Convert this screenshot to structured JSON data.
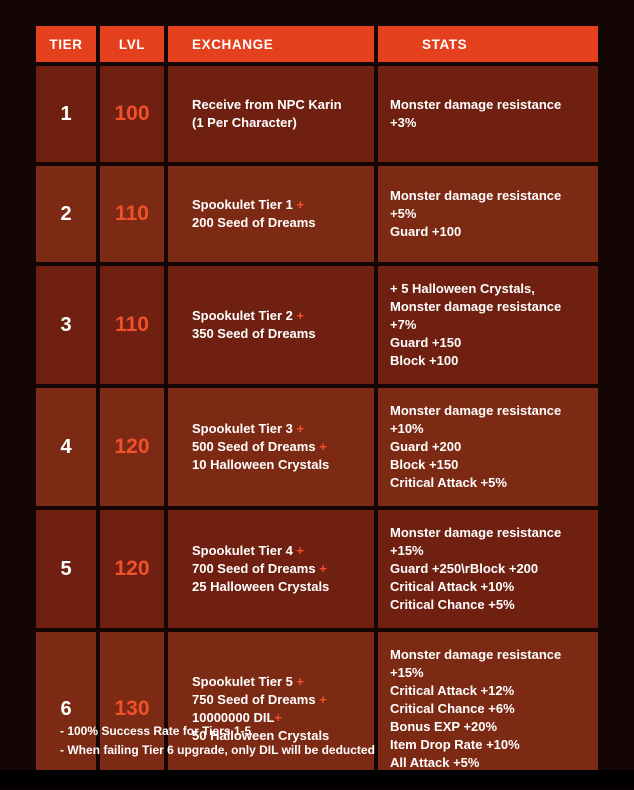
{
  "colors": {
    "header_bg": "#e5401d",
    "row_dark": "#6f2010",
    "row_light": "#7d2a14",
    "lvl_text": "#f2502a",
    "plus_accent": "#f2502a"
  },
  "table": {
    "headers": [
      "TIER",
      "LVL",
      "EXCHANGE",
      "STATS"
    ],
    "rows": [
      {
        "tier": "1",
        "lvl": "100",
        "exchange": [
          "Receive from NPC Karin",
          "(1 Per Character)"
        ],
        "stats": [
          "Monster damage resistance +3%"
        ]
      },
      {
        "tier": "2",
        "lvl": "110",
        "exchange": [
          "Spookulet Tier 1 +",
          "200 Seed of Dreams"
        ],
        "stats": [
          "Monster damage resistance +5%",
          "Guard +100"
        ]
      },
      {
        "tier": "3",
        "lvl": "110",
        "exchange": [
          "Spookulet Tier 2 +",
          "350 Seed of Dreams"
        ],
        "stats": [
          "+ 5 Halloween Crystals,",
          "Monster damage resistance +7%",
          "Guard +150",
          "Block +100"
        ]
      },
      {
        "tier": "4",
        "lvl": "120",
        "exchange": [
          "Spookulet Tier 3 +",
          "500 Seed of Dreams +",
          "10 Halloween Crystals"
        ],
        "stats": [
          "Monster damage resistance +10%",
          "Guard +200",
          "Block +150",
          "Critical Attack +5%"
        ]
      },
      {
        "tier": "5",
        "lvl": "120",
        "exchange": [
          "Spookulet Tier 4 +",
          "700 Seed of Dreams +",
          "25 Halloween Crystals"
        ],
        "stats": [
          "Monster damage resistance +15%",
          "Guard +250\\rBlock +200",
          "Critical Attack +10%",
          "Critical Chance +5%"
        ]
      },
      {
        "tier": "6",
        "lvl": "130",
        "exchange": [
          "Spookulet Tier 5 +",
          "750 Seed of Dreams +",
          "10000000 DIL+",
          "50 Halloween Crystals"
        ],
        "stats": [
          "Monster damage resistance +15%",
          "Critical Attack +12%",
          "Critical Chance +6%",
          "Bonus EXP +20%",
          "Item Drop Rate +10%",
          "All Attack +5%"
        ]
      }
    ]
  },
  "footer": {
    "notes": [
      "- 100% Success Rate for Tiers 1-5",
      "- When failing Tier 6 upgrade, only DIL will be deducted"
    ]
  }
}
